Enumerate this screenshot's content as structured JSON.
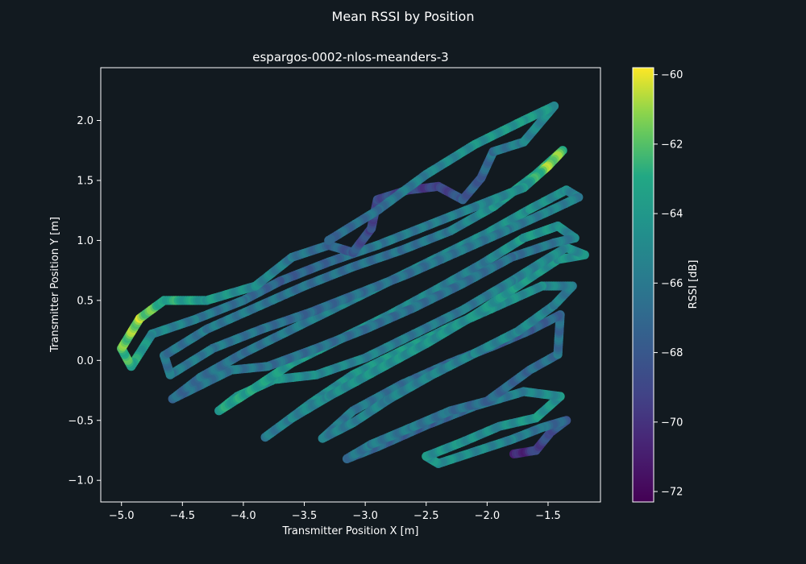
{
  "figure": {
    "suptitle": "Mean RSSI by Position"
  },
  "colors": {
    "background": "#121a20",
    "axes_edge": "#ffffff",
    "text": "#ffffff"
  },
  "chart_data": {
    "type": "scatter",
    "title": "espargos-0002-nlos-meanders-3",
    "xlabel": "Transmitter Position X [m]",
    "ylabel": "Transmitter Position Y [m]",
    "xlim": [
      -5.17,
      -1.07
    ],
    "ylim": [
      -1.18,
      2.44
    ],
    "xticks": [
      -5.0,
      -4.5,
      -4.0,
      -3.5,
      -3.0,
      -2.5,
      -2.0,
      -1.5
    ],
    "xtick_labels": [
      "−5.0",
      "−4.5",
      "−4.0",
      "−3.5",
      "−3.0",
      "−2.5",
      "−2.0",
      "−1.5"
    ],
    "yticks": [
      -1.0,
      -0.5,
      0.0,
      0.5,
      1.0,
      1.5,
      2.0
    ],
    "ytick_labels": [
      "−1.0",
      "−0.5",
      "0.0",
      "0.5",
      "1.0",
      "1.5",
      "2.0"
    ],
    "grid": false,
    "colormap": "viridis",
    "colorbar": {
      "label": "RSSI [dB]",
      "range": [
        -72.3,
        -59.8
      ],
      "ticks": [
        -60,
        -62,
        -64,
        -66,
        -68,
        -70,
        -72
      ],
      "tick_labels": [
        "−60",
        "−62",
        "−64",
        "−66",
        "−68",
        "−70",
        "−72"
      ]
    },
    "trajectory": [
      [
        -1.78,
        -0.78,
        -71.0
      ],
      [
        -1.6,
        -0.75,
        -69.5
      ],
      [
        -1.48,
        -0.6,
        -68.5
      ],
      [
        -1.35,
        -0.5,
        -67.5
      ],
      [
        -1.55,
        -0.56,
        -66.5
      ],
      [
        -1.8,
        -0.66,
        -65.5
      ],
      [
        -2.1,
        -0.76,
        -65.0
      ],
      [
        -2.4,
        -0.86,
        -64.5
      ],
      [
        -2.5,
        -0.8,
        -64.5
      ],
      [
        -2.2,
        -0.68,
        -64.5
      ],
      [
        -1.9,
        -0.55,
        -65.0
      ],
      [
        -1.6,
        -0.48,
        -64.0
      ],
      [
        -1.4,
        -0.3,
        -64.5
      ],
      [
        -1.7,
        -0.26,
        -65.5
      ],
      [
        -2.1,
        -0.38,
        -66.5
      ],
      [
        -2.5,
        -0.54,
        -67.5
      ],
      [
        -2.9,
        -0.72,
        -67.0
      ],
      [
        -3.15,
        -0.82,
        -66.5
      ],
      [
        -2.95,
        -0.7,
        -66.0
      ],
      [
        -2.6,
        -0.55,
        -66.0
      ],
      [
        -2.3,
        -0.42,
        -66.5
      ],
      [
        -2.0,
        -0.34,
        -67.0
      ],
      [
        -1.65,
        -0.08,
        -67.0
      ],
      [
        -1.42,
        0.05,
        -66.5
      ],
      [
        -1.4,
        0.38,
        -67.0
      ],
      [
        -1.65,
        0.25,
        -67.5
      ],
      [
        -1.95,
        0.12,
        -67.5
      ],
      [
        -2.3,
        -0.02,
        -67.0
      ],
      [
        -2.7,
        -0.2,
        -66.5
      ],
      [
        -3.1,
        -0.42,
        -66.0
      ],
      [
        -3.35,
        -0.65,
        -66.0
      ],
      [
        -3.1,
        -0.52,
        -65.5
      ],
      [
        -2.8,
        -0.32,
        -65.5
      ],
      [
        -2.45,
        -0.12,
        -65.5
      ],
      [
        -2.1,
        0.06,
        -65.5
      ],
      [
        -1.75,
        0.24,
        -65.0
      ],
      [
        -1.45,
        0.46,
        -65.5
      ],
      [
        -1.3,
        0.62,
        -66.0
      ],
      [
        -1.55,
        0.62,
        -65.0
      ],
      [
        -1.9,
        0.46,
        -64.5
      ],
      [
        -2.3,
        0.28,
        -64.5
      ],
      [
        -2.7,
        0.08,
        -64.0
      ],
      [
        -3.1,
        -0.12,
        -64.5
      ],
      [
        -3.45,
        -0.36,
        -65.0
      ],
      [
        -3.82,
        -0.64,
        -66.0
      ],
      [
        -3.6,
        -0.48,
        -65.5
      ],
      [
        -3.3,
        -0.3,
        -65.0
      ],
      [
        -2.9,
        -0.08,
        -64.5
      ],
      [
        -2.5,
        0.14,
        -64.5
      ],
      [
        -2.1,
        0.38,
        -64.5
      ],
      [
        -1.75,
        0.62,
        -64.0
      ],
      [
        -1.42,
        0.84,
        -64.5
      ],
      [
        -1.2,
        0.88,
        -64.5
      ],
      [
        -1.35,
        0.94,
        -65.0
      ],
      [
        -1.5,
        0.85,
        -65.0
      ],
      [
        -1.8,
        0.66,
        -65.5
      ],
      [
        -2.2,
        0.42,
        -66.0
      ],
      [
        -2.6,
        0.22,
        -66.0
      ],
      [
        -3.0,
        0.02,
        -65.5
      ],
      [
        -3.4,
        -0.12,
        -65.0
      ],
      [
        -3.75,
        -0.16,
        -64.5
      ],
      [
        -4.05,
        -0.3,
        -64.0
      ],
      [
        -4.2,
        -0.42,
        -63.5
      ],
      [
        -3.95,
        -0.26,
        -63.5
      ],
      [
        -3.6,
        -0.02,
        -64.0
      ],
      [
        -3.2,
        0.18,
        -64.5
      ],
      [
        -2.8,
        0.38,
        -65.0
      ],
      [
        -2.4,
        0.6,
        -65.5
      ],
      [
        -2.05,
        0.8,
        -66.0
      ],
      [
        -1.7,
        1.02,
        -64.0
      ],
      [
        -1.42,
        1.12,
        -64.5
      ],
      [
        -1.28,
        1.02,
        -65.5
      ],
      [
        -1.45,
        0.98,
        -66.0
      ],
      [
        -1.8,
        0.86,
        -66.5
      ],
      [
        -2.2,
        0.64,
        -66.5
      ],
      [
        -2.6,
        0.44,
        -66.5
      ],
      [
        -3.0,
        0.26,
        -66.5
      ],
      [
        -3.4,
        0.1,
        -66.5
      ],
      [
        -3.8,
        -0.05,
        -66.5
      ],
      [
        -4.1,
        -0.08,
        -66.0
      ],
      [
        -4.38,
        -0.22,
        -66.5
      ],
      [
        -4.58,
        -0.32,
        -67.0
      ],
      [
        -4.35,
        -0.14,
        -66.5
      ],
      [
        -4.0,
        0.06,
        -66.5
      ],
      [
        -3.6,
        0.26,
        -66.0
      ],
      [
        -3.2,
        0.46,
        -65.5
      ],
      [
        -2.8,
        0.66,
        -65.5
      ],
      [
        -2.4,
        0.86,
        -65.5
      ],
      [
        -2.0,
        1.06,
        -65.0
      ],
      [
        -1.65,
        1.26,
        -64.5
      ],
      [
        -1.35,
        1.42,
        -65.0
      ],
      [
        -1.25,
        1.36,
        -65.5
      ],
      [
        -1.5,
        1.24,
        -65.5
      ],
      [
        -1.85,
        1.08,
        -66.0
      ],
      [
        -2.25,
        0.9,
        -66.0
      ],
      [
        -2.65,
        0.72,
        -66.5
      ],
      [
        -3.05,
        0.56,
        -66.5
      ],
      [
        -3.45,
        0.4,
        -67.0
      ],
      [
        -3.85,
        0.26,
        -66.5
      ],
      [
        -4.25,
        0.1,
        -66.0
      ],
      [
        -4.6,
        -0.12,
        -66.0
      ],
      [
        -4.65,
        0.04,
        -66.5
      ],
      [
        -4.3,
        0.26,
        -66.0
      ],
      [
        -3.9,
        0.44,
        -66.0
      ],
      [
        -3.5,
        0.62,
        -66.5
      ],
      [
        -3.1,
        0.78,
        -66.5
      ],
      [
        -2.7,
        0.92,
        -66.5
      ],
      [
        -2.3,
        1.08,
        -66.0
      ],
      [
        -1.95,
        1.28,
        -64.5
      ],
      [
        -1.6,
        1.55,
        -63.5
      ],
      [
        -1.38,
        1.75,
        -62.0
      ],
      [
        -1.5,
        1.62,
        -61.0
      ],
      [
        -1.7,
        1.44,
        -64.5
      ],
      [
        -2.1,
        1.28,
        -65.5
      ],
      [
        -2.5,
        1.12,
        -66.0
      ],
      [
        -2.9,
        0.96,
        -66.0
      ],
      [
        -3.3,
        0.82,
        -67.0
      ],
      [
        -3.7,
        0.66,
        -67.5
      ],
      [
        -4.0,
        0.5,
        -66.5
      ],
      [
        -4.4,
        0.34,
        -66.0
      ],
      [
        -4.75,
        0.22,
        -65.0
      ],
      [
        -4.92,
        -0.05,
        -63.0
      ],
      [
        -5.0,
        0.1,
        -62.0
      ],
      [
        -4.85,
        0.35,
        -61.0
      ],
      [
        -4.65,
        0.5,
        -63.0
      ],
      [
        -4.3,
        0.5,
        -64.0
      ],
      [
        -3.9,
        0.62,
        -65.0
      ],
      [
        -3.6,
        0.86,
        -66.0
      ],
      [
        -3.3,
        0.96,
        -67.0
      ],
      [
        -3.1,
        0.9,
        -68.0
      ],
      [
        -2.95,
        1.1,
        -69.0
      ],
      [
        -2.9,
        1.34,
        -68.5
      ],
      [
        -2.65,
        1.42,
        -69.0
      ],
      [
        -2.4,
        1.45,
        -69.5
      ],
      [
        -2.2,
        1.34,
        -68.0
      ],
      [
        -2.05,
        1.52,
        -67.5
      ],
      [
        -1.95,
        1.74,
        -66.5
      ],
      [
        -1.7,
        1.82,
        -65.5
      ],
      [
        -1.5,
        2.06,
        -65.0
      ],
      [
        -1.45,
        2.12,
        -64.5
      ],
      [
        -1.7,
        2.0,
        -64.0
      ],
      [
        -2.1,
        1.8,
        -64.5
      ],
      [
        -2.5,
        1.55,
        -65.5
      ],
      [
        -2.9,
        1.25,
        -66.5
      ],
      [
        -3.3,
        1.0,
        -67.0
      ]
    ]
  }
}
